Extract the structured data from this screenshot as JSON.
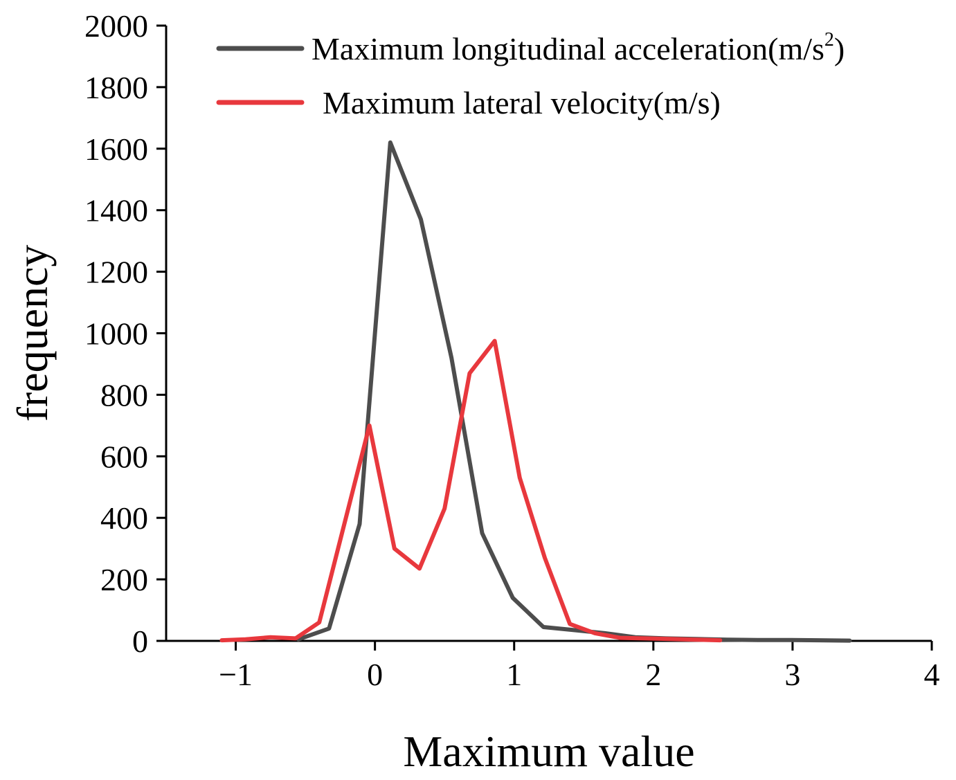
{
  "chart_data": {
    "type": "line",
    "title": "",
    "xlabel": "Maximum value",
    "ylabel": "frequency",
    "xlim": [
      -1.5,
      4
    ],
    "ylim": [
      0,
      2000
    ],
    "xticks": [
      -1,
      0,
      1,
      2,
      3,
      4
    ],
    "yticks": [
      0,
      200,
      400,
      600,
      800,
      1000,
      1200,
      1400,
      1600,
      1800,
      2000
    ],
    "xtick_labels": [
      "−1",
      "0",
      "1",
      "2",
      "3",
      "4"
    ],
    "ytick_labels": [
      "0",
      "200",
      "400",
      "600",
      "800",
      "1000",
      "1200",
      "1400",
      "1600",
      "1800",
      "2000"
    ],
    "legend_position": "top-right",
    "series": [
      {
        "name": "Maximum longitudinal acceleration(m/s2)",
        "legend_main": "Maximum longitudinal acceleration(m/s",
        "legend_sup": "2",
        "legend_tail": ")",
        "color": "#4d4d4d",
        "x": [
          -0.55,
          -0.33,
          -0.11,
          0.11,
          0.33,
          0.55,
          0.77,
          0.99,
          1.21,
          1.43,
          1.65,
          1.87,
          2.09,
          2.31,
          2.53,
          2.75,
          2.97,
          3.19,
          3.41
        ],
        "y": [
          5,
          40,
          380,
          1620,
          1370,
          920,
          350,
          140,
          45,
          35,
          25,
          12,
          8,
          6,
          4,
          3,
          3,
          2,
          1
        ]
      },
      {
        "name": "Maximum  lateral velocity(m/s)",
        "legend_main": "Maximum  lateral velocity(m/s)",
        "legend_sup": "",
        "legend_tail": "",
        "color": "#e8383d",
        "x": [
          -1.1,
          -0.93,
          -0.75,
          -0.57,
          -0.4,
          -0.22,
          -0.04,
          0.14,
          0.32,
          0.5,
          0.68,
          0.86,
          1.04,
          1.22,
          1.4,
          1.58,
          1.76,
          1.94,
          2.12,
          2.3,
          2.48
        ],
        "y": [
          2,
          5,
          12,
          8,
          60,
          380,
          700,
          300,
          235,
          430,
          870,
          975,
          530,
          270,
          55,
          25,
          10,
          8,
          6,
          4,
          2
        ]
      }
    ]
  }
}
